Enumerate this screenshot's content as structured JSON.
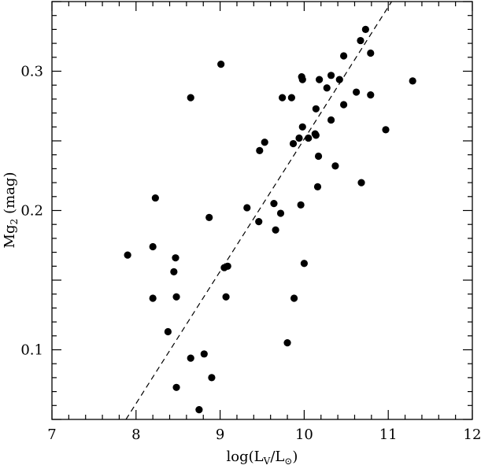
{
  "chart_data": {
    "type": "scatter",
    "xlabel": "log(L",
    "xlabel_sub": "V",
    "xlabel_mid": "/L",
    "xlabel_sun": "⊙",
    "xlabel_end": ")",
    "ylabel": "Mg",
    "ylabel_sub": "2",
    "ylabel_unit": "(mag)",
    "xlim": [
      7,
      12
    ],
    "ylim": [
      0.05,
      0.35
    ],
    "xticks": [
      7,
      8,
      9,
      10,
      11,
      12
    ],
    "xtick_labels": [
      "7",
      "8",
      "9",
      "10",
      "11",
      "12"
    ],
    "yticks": [
      0.1,
      0.2,
      0.3
    ],
    "ytick_labels": [
      "0.1",
      "0.2",
      "0.3"
    ],
    "grid": false,
    "marker_color": "#000000",
    "fit_line": {
      "style": "dashed",
      "x": [
        7.88,
        11.04
      ],
      "y": [
        0.05,
        0.35
      ]
    },
    "points": [
      {
        "x": 7.9,
        "y": 0.168
      },
      {
        "x": 8.2,
        "y": 0.174
      },
      {
        "x": 8.2,
        "y": 0.137
      },
      {
        "x": 8.23,
        "y": 0.209
      },
      {
        "x": 8.38,
        "y": 0.113
      },
      {
        "x": 8.45,
        "y": 0.156
      },
      {
        "x": 8.47,
        "y": 0.166
      },
      {
        "x": 8.48,
        "y": 0.138
      },
      {
        "x": 8.48,
        "y": 0.073
      },
      {
        "x": 8.65,
        "y": 0.281
      },
      {
        "x": 8.65,
        "y": 0.094
      },
      {
        "x": 8.75,
        "y": 0.057
      },
      {
        "x": 8.81,
        "y": 0.097
      },
      {
        "x": 8.87,
        "y": 0.195
      },
      {
        "x": 8.9,
        "y": 0.08
      },
      {
        "x": 9.01,
        "y": 0.305
      },
      {
        "x": 9.05,
        "y": 0.159
      },
      {
        "x": 9.07,
        "y": 0.138
      },
      {
        "x": 9.09,
        "y": 0.16
      },
      {
        "x": 9.32,
        "y": 0.202
      },
      {
        "x": 9.46,
        "y": 0.192
      },
      {
        "x": 9.47,
        "y": 0.243
      },
      {
        "x": 9.53,
        "y": 0.249
      },
      {
        "x": 9.64,
        "y": 0.205
      },
      {
        "x": 9.66,
        "y": 0.186
      },
      {
        "x": 9.72,
        "y": 0.198
      },
      {
        "x": 9.74,
        "y": 0.281
      },
      {
        "x": 9.8,
        "y": 0.105
      },
      {
        "x": 9.85,
        "y": 0.281
      },
      {
        "x": 9.87,
        "y": 0.248
      },
      {
        "x": 9.88,
        "y": 0.137
      },
      {
        "x": 9.94,
        "y": 0.252
      },
      {
        "x": 9.96,
        "y": 0.204
      },
      {
        "x": 9.97,
        "y": 0.296
      },
      {
        "x": 9.98,
        "y": 0.294
      },
      {
        "x": 9.98,
        "y": 0.26
      },
      {
        "x": 10.0,
        "y": 0.162
      },
      {
        "x": 10.05,
        "y": 0.252
      },
      {
        "x": 10.13,
        "y": 0.255
      },
      {
        "x": 10.14,
        "y": 0.273
      },
      {
        "x": 10.14,
        "y": 0.254
      },
      {
        "x": 10.16,
        "y": 0.217
      },
      {
        "x": 10.17,
        "y": 0.239
      },
      {
        "x": 10.18,
        "y": 0.294
      },
      {
        "x": 10.27,
        "y": 0.288
      },
      {
        "x": 10.32,
        "y": 0.297
      },
      {
        "x": 10.32,
        "y": 0.265
      },
      {
        "x": 10.37,
        "y": 0.232
      },
      {
        "x": 10.42,
        "y": 0.294
      },
      {
        "x": 10.47,
        "y": 0.311
      },
      {
        "x": 10.47,
        "y": 0.276
      },
      {
        "x": 10.62,
        "y": 0.285
      },
      {
        "x": 10.67,
        "y": 0.322
      },
      {
        "x": 10.68,
        "y": 0.22
      },
      {
        "x": 10.73,
        "y": 0.33
      },
      {
        "x": 10.79,
        "y": 0.313
      },
      {
        "x": 10.79,
        "y": 0.283
      },
      {
        "x": 10.97,
        "y": 0.258
      },
      {
        "x": 11.29,
        "y": 0.293
      }
    ]
  }
}
